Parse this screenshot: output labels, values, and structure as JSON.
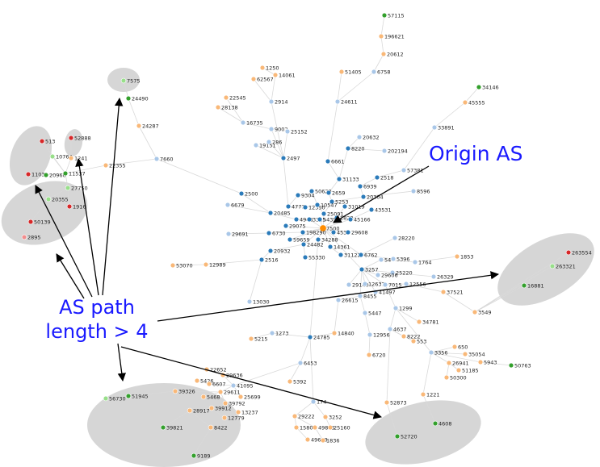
{
  "colors": {
    "origin": "#ff8c00",
    "core": "#2b7bba",
    "light": "#a9c7e8",
    "peripheral": "#f9b878",
    "leaf_green": "#33a02c",
    "leaf_lightgreen": "#98df8a",
    "leaf_red": "#d62728",
    "leaf_pink": "#f28e8e",
    "annotation": "#1a1aff",
    "cluster": "#b4b4b4"
  },
  "annotations": {
    "origin_as": "Origin AS",
    "as_path_line1": "AS path",
    "as_path_line2": "length > 4"
  },
  "nodes": [
    {
      "id": "57115",
      "c": "leaf_green"
    },
    {
      "id": "196621",
      "c": "peripheral"
    },
    {
      "id": "20612",
      "c": "peripheral"
    },
    {
      "id": "1250",
      "c": "peripheral"
    },
    {
      "id": "14061",
      "c": "peripheral"
    },
    {
      "id": "62567",
      "c": "peripheral"
    },
    {
      "id": "51405",
      "c": "peripheral"
    },
    {
      "id": "6758",
      "c": "light"
    },
    {
      "id": "7575",
      "c": "leaf_lightgreen"
    },
    {
      "id": "24490",
      "c": "leaf_green"
    },
    {
      "id": "34146",
      "c": "leaf_green"
    },
    {
      "id": "22545",
      "c": "peripheral"
    },
    {
      "id": "2914",
      "c": "light"
    },
    {
      "id": "28138",
      "c": "peripheral"
    },
    {
      "id": "24611",
      "c": "light"
    },
    {
      "id": "45555",
      "c": "peripheral"
    },
    {
      "id": "16735",
      "c": "light"
    },
    {
      "id": "24287",
      "c": "peripheral"
    },
    {
      "id": "9002",
      "c": "light"
    },
    {
      "id": "25152",
      "c": "light"
    },
    {
      "id": "33891",
      "c": "light"
    },
    {
      "id": "52888",
      "c": "leaf_red"
    },
    {
      "id": "19151",
      "c": "light"
    },
    {
      "id": "286",
      "c": "light"
    },
    {
      "id": "20632",
      "c": "light"
    },
    {
      "id": "513",
      "c": "leaf_red"
    },
    {
      "id": "8220",
      "c": "core"
    },
    {
      "id": "202194",
      "c": "light"
    },
    {
      "id": "10764",
      "c": "leaf_lightgreen"
    },
    {
      "id": "1241",
      "c": "peripheral"
    },
    {
      "id": "2497",
      "c": "core"
    },
    {
      "id": "7660",
      "c": "light"
    },
    {
      "id": "22355",
      "c": "peripheral"
    },
    {
      "id": "6661",
      "c": "core"
    },
    {
      "id": "57381",
      "c": "light"
    },
    {
      "id": "1103",
      "c": "leaf_red"
    },
    {
      "id": "20960",
      "c": "leaf_green"
    },
    {
      "id": "11537",
      "c": "leaf_green"
    },
    {
      "id": "2518",
      "c": "core"
    },
    {
      "id": "31133",
      "c": "core"
    },
    {
      "id": "27750",
      "c": "leaf_lightgreen"
    },
    {
      "id": "6939",
      "c": "core"
    },
    {
      "id": "8596",
      "c": "light"
    },
    {
      "id": "50629",
      "c": "core"
    },
    {
      "id": "2659",
      "c": "core"
    },
    {
      "id": "2500",
      "c": "core"
    },
    {
      "id": "9304",
      "c": "core"
    },
    {
      "id": "20304",
      "c": "core"
    },
    {
      "id": "20355",
      "c": "leaf_lightgreen"
    },
    {
      "id": "1916",
      "c": "leaf_red"
    },
    {
      "id": "5253",
      "c": "core"
    },
    {
      "id": "6679",
      "c": "light"
    },
    {
      "id": "4777",
      "c": "core"
    },
    {
      "id": "12350",
      "c": "core"
    },
    {
      "id": "10547",
      "c": "core"
    },
    {
      "id": "31019",
      "c": "core"
    },
    {
      "id": "43531",
      "c": "core"
    },
    {
      "id": "20485",
      "c": "core"
    },
    {
      "id": "25091",
      "c": "core"
    },
    {
      "id": "50139",
      "c": "leaf_red"
    },
    {
      "id": "4948",
      "c": "core"
    },
    {
      "id": "3315",
      "c": "core"
    },
    {
      "id": "5435",
      "c": "core"
    },
    {
      "id": "2828",
      "c": "core"
    },
    {
      "id": "45166",
      "c": "core"
    },
    {
      "id": "29075",
      "c": "core"
    },
    {
      "id": "7500",
      "c": "origin"
    },
    {
      "id": "2895",
      "c": "leaf_pink"
    },
    {
      "id": "29691",
      "c": "light"
    },
    {
      "id": "6730",
      "c": "core"
    },
    {
      "id": "198290",
      "c": "core"
    },
    {
      "id": "4538",
      "c": "core"
    },
    {
      "id": "29608",
      "c": "core"
    },
    {
      "id": "28220",
      "c": "light"
    },
    {
      "id": "59659",
      "c": "core"
    },
    {
      "id": "34288",
      "c": "core"
    },
    {
      "id": "24482",
      "c": "core"
    },
    {
      "id": "14361",
      "c": "core"
    },
    {
      "id": "20932",
      "c": "core"
    },
    {
      "id": "31122",
      "c": "core"
    },
    {
      "id": "263554",
      "c": "leaf_red"
    },
    {
      "id": "55330",
      "c": "core"
    },
    {
      "id": "1853",
      "c": "peripheral"
    },
    {
      "id": "6762",
      "c": "core"
    },
    {
      "id": "5396",
      "c": "light"
    },
    {
      "id": "1764",
      "c": "light"
    },
    {
      "id": "263321",
      "c": "leaf_lightgreen"
    },
    {
      "id": "2516",
      "c": "core"
    },
    {
      "id": "53070",
      "c": "peripheral"
    },
    {
      "id": "12989",
      "c": "peripheral"
    },
    {
      "id": "54",
      "c": "light"
    },
    {
      "id": "3257",
      "c": "core"
    },
    {
      "id": "25220",
      "c": "light"
    },
    {
      "id": "29606",
      "c": "light"
    },
    {
      "id": "26329",
      "c": "light"
    },
    {
      "id": "29140",
      "c": "light"
    },
    {
      "id": "12637",
      "c": "light"
    },
    {
      "id": "7015",
      "c": "light"
    },
    {
      "id": "12556",
      "c": "light"
    },
    {
      "id": "16881",
      "c": "leaf_green"
    },
    {
      "id": "41497",
      "c": "light"
    },
    {
      "id": "8455",
      "c": "light"
    },
    {
      "id": "37521",
      "c": "peripheral"
    },
    {
      "id": "13030",
      "c": "light"
    },
    {
      "id": "26615",
      "c": "light"
    },
    {
      "id": "1299",
      "c": "light"
    },
    {
      "id": "3549",
      "c": "peripheral"
    },
    {
      "id": "5447",
      "c": "light"
    },
    {
      "id": "34781",
      "c": "peripheral"
    },
    {
      "id": "5215",
      "c": "peripheral"
    },
    {
      "id": "1273",
      "c": "light"
    },
    {
      "id": "14840",
      "c": "peripheral"
    },
    {
      "id": "4637",
      "c": "light"
    },
    {
      "id": "24785",
      "c": "core"
    },
    {
      "id": "12956",
      "c": "light"
    },
    {
      "id": "8222",
      "c": "peripheral"
    },
    {
      "id": "553",
      "c": "peripheral"
    },
    {
      "id": "650",
      "c": "peripheral"
    },
    {
      "id": "3356",
      "c": "light"
    },
    {
      "id": "35054",
      "c": "peripheral"
    },
    {
      "id": "6720",
      "c": "peripheral"
    },
    {
      "id": "26941",
      "c": "peripheral"
    },
    {
      "id": "5943",
      "c": "peripheral"
    },
    {
      "id": "50763",
      "c": "leaf_green"
    },
    {
      "id": "6453",
      "c": "light"
    },
    {
      "id": "51185",
      "c": "peripheral"
    },
    {
      "id": "22652",
      "c": "peripheral"
    },
    {
      "id": "50300",
      "c": "peripheral"
    },
    {
      "id": "29636",
      "c": "peripheral"
    },
    {
      "id": "5392",
      "c": "peripheral"
    },
    {
      "id": "5426",
      "c": "peripheral"
    },
    {
      "id": "6607",
      "c": "peripheral"
    },
    {
      "id": "41095",
      "c": "light"
    },
    {
      "id": "39326",
      "c": "peripheral"
    },
    {
      "id": "29611",
      "c": "peripheral"
    },
    {
      "id": "1221",
      "c": "peripheral"
    },
    {
      "id": "56730",
      "c": "leaf_lightgreen"
    },
    {
      "id": "51945",
      "c": "leaf_green"
    },
    {
      "id": "5468",
      "c": "peripheral"
    },
    {
      "id": "25699",
      "c": "peripheral"
    },
    {
      "id": "39792",
      "c": "peripheral"
    },
    {
      "id": "174",
      "c": "light"
    },
    {
      "id": "52873",
      "c": "peripheral"
    },
    {
      "id": "39912",
      "c": "peripheral"
    },
    {
      "id": "13237",
      "c": "peripheral"
    },
    {
      "id": "28917",
      "c": "peripheral"
    },
    {
      "id": "12779",
      "c": "peripheral"
    },
    {
      "id": "4608",
      "c": "leaf_green"
    },
    {
      "id": "29222",
      "c": "peripheral"
    },
    {
      "id": "3252",
      "c": "peripheral"
    },
    {
      "id": "39821",
      "c": "leaf_green"
    },
    {
      "id": "8422",
      "c": "peripheral"
    },
    {
      "id": "15808",
      "c": "peripheral"
    },
    {
      "id": "49835",
      "c": "peripheral"
    },
    {
      "id": "25160",
      "c": "peripheral"
    },
    {
      "id": "52720",
      "c": "leaf_green"
    },
    {
      "id": "49608",
      "c": "peripheral"
    },
    {
      "id": "1836",
      "c": "peripheral"
    },
    {
      "id": "9189",
      "c": "leaf_green"
    }
  ]
}
